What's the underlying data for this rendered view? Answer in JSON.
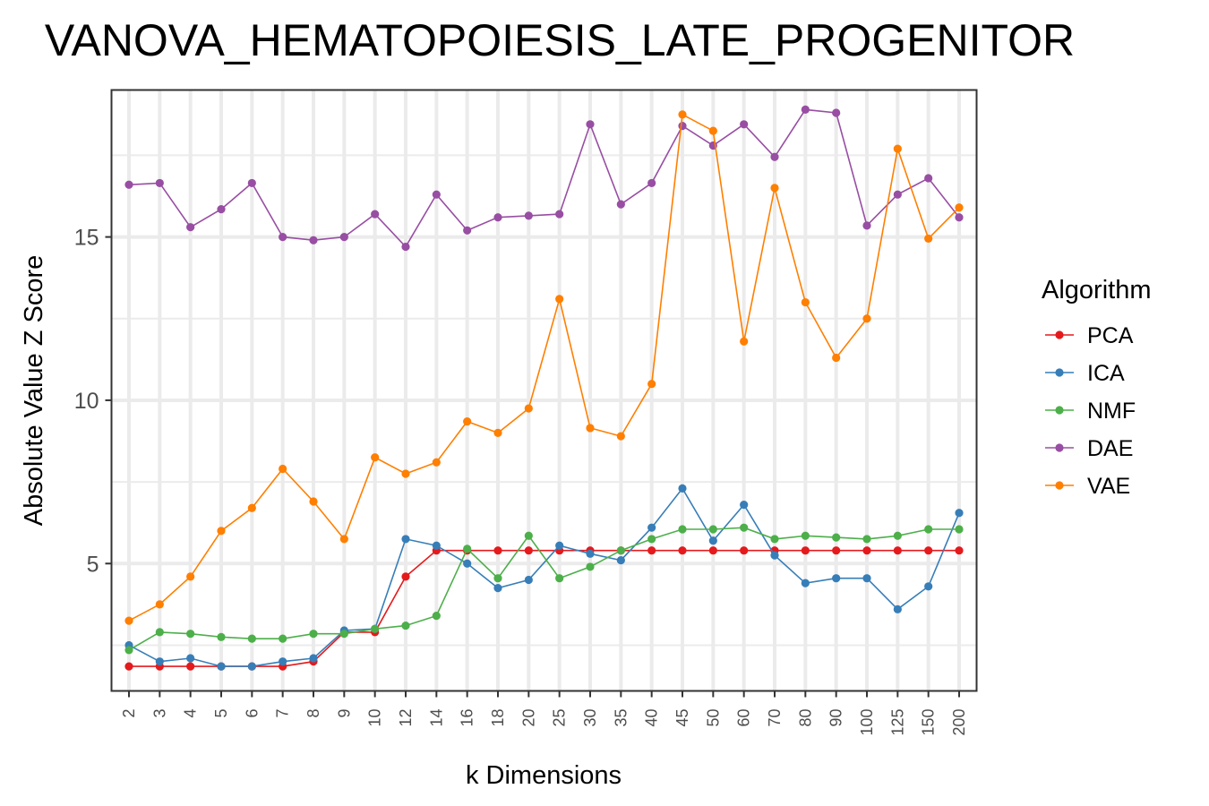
{
  "chart_data": {
    "type": "line",
    "title": "VANOVA_HEMATOPOIESIS_LATE_PROGENITOR",
    "xlabel": "k Dimensions",
    "ylabel": "Absolute Value Z Score",
    "x_is_categorical": true,
    "categories": [
      "2",
      "3",
      "4",
      "5",
      "6",
      "7",
      "8",
      "9",
      "10",
      "12",
      "14",
      "16",
      "18",
      "20",
      "25",
      "30",
      "35",
      "40",
      "45",
      "50",
      "60",
      "70",
      "80",
      "90",
      "100",
      "125",
      "150",
      "200"
    ],
    "yticks": [
      5,
      10,
      15
    ],
    "ylim": [
      1.1,
      19.5
    ],
    "grid": true,
    "legend": {
      "title": "Algorithm",
      "position": "right"
    },
    "series": [
      {
        "name": "PCA",
        "color": "#e41a1c",
        "values": [
          1.85,
          1.85,
          1.85,
          1.85,
          1.85,
          1.85,
          2.0,
          2.9,
          2.9,
          4.6,
          5.4,
          5.4,
          5.4,
          5.4,
          5.4,
          5.4,
          5.4,
          5.4,
          5.4,
          5.4,
          5.4,
          5.4,
          5.4,
          5.4,
          5.4,
          5.4,
          5.4,
          5.4
        ]
      },
      {
        "name": "ICA",
        "color": "#377eb8",
        "values": [
          2.5,
          2.0,
          2.1,
          1.85,
          1.85,
          2.0,
          2.1,
          2.95,
          3.0,
          5.75,
          5.55,
          5.0,
          4.25,
          4.5,
          5.55,
          5.3,
          5.1,
          6.1,
          7.3,
          5.7,
          6.8,
          5.25,
          4.4,
          4.55,
          4.55,
          3.6,
          4.3,
          6.55
        ]
      },
      {
        "name": "NMF",
        "color": "#4daf4a",
        "values": [
          2.35,
          2.9,
          2.85,
          2.75,
          2.7,
          2.7,
          2.85,
          2.85,
          3.0,
          3.1,
          3.4,
          5.45,
          4.55,
          5.85,
          4.55,
          4.9,
          5.4,
          5.75,
          6.05,
          6.05,
          6.1,
          5.75,
          5.85,
          5.8,
          5.75,
          5.85,
          6.05,
          6.05
        ]
      },
      {
        "name": "DAE",
        "color": "#984ea3",
        "values": [
          16.6,
          16.65,
          15.3,
          15.85,
          16.65,
          15.0,
          14.9,
          15.0,
          15.7,
          14.7,
          16.3,
          15.2,
          15.6,
          15.65,
          15.7,
          18.45,
          16.0,
          16.65,
          18.4,
          17.8,
          18.45,
          17.45,
          18.9,
          18.8,
          15.35,
          16.3,
          16.8,
          15.6
        ]
      },
      {
        "name": "VAE",
        "color": "#ff7f00",
        "values": [
          3.25,
          3.75,
          4.6,
          6.0,
          6.7,
          7.9,
          6.9,
          5.75,
          8.25,
          7.75,
          8.1,
          9.35,
          9.0,
          9.75,
          13.1,
          9.15,
          8.9,
          10.5,
          18.75,
          18.25,
          11.8,
          16.5,
          13.0,
          11.3,
          12.5,
          17.7,
          14.95,
          15.9
        ]
      }
    ]
  }
}
